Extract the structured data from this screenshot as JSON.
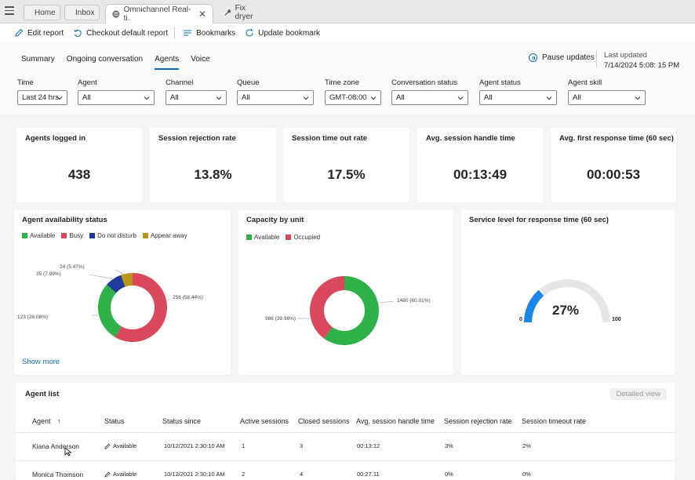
{
  "browser": {
    "tabs": [
      {
        "label": "Home",
        "icon": "home-icon"
      },
      {
        "label": "Inbox",
        "icon": "inbox-icon"
      },
      {
        "label": "Omnichannel Real-ti.",
        "icon": "globe-icon",
        "active": true
      },
      {
        "label": "Fix dryer",
        "icon": "wrench-icon"
      }
    ]
  },
  "commands": {
    "edit_report": "Edit report",
    "checkout_default": "Checkout default report",
    "bookmarks": "Bookmarks",
    "update_bookmark": "Update bookmark"
  },
  "report_tabs": [
    "Summary",
    "Ongoing conversation",
    "Agents",
    "Voice"
  ],
  "active_report_tab": "Agents",
  "pause_updates": "Pause updates",
  "last_updated": {
    "label": "Last updated",
    "value": "7/14/2024 5:08: 15 PM"
  },
  "filters": [
    {
      "label": "Time",
      "value": "Last 24 hrs"
    },
    {
      "label": "Agent",
      "value": "All"
    },
    {
      "label": "Channel",
      "value": "All"
    },
    {
      "label": "Queue",
      "value": "All"
    },
    {
      "label": "Time zone",
      "value": "GMT-08:00"
    },
    {
      "label": "Conversation status",
      "value": "All"
    },
    {
      "label": "Agent status",
      "value": "All"
    },
    {
      "label": "Agent skill",
      "value": "All"
    }
  ],
  "kpis": [
    {
      "title": "Agents logged in",
      "value": "438"
    },
    {
      "title": "Session rejection rate",
      "value": "13.8%"
    },
    {
      "title": "Session time out rate",
      "value": "17.5%"
    },
    {
      "title": "Avg. session handle time",
      "value": "00:13:49"
    },
    {
      "title": "Avg. first response time (60 sec)",
      "value": "00:00:53"
    }
  ],
  "colors": {
    "available": "#2fb14a",
    "busy": "#d9495b",
    "dnd": "#1f3c9c",
    "away": "#b8961c",
    "accent": "#0f6cbd",
    "gauge_track": "#e6e6e6"
  },
  "availability_card": {
    "title": "Agent availability status",
    "legend": [
      "Available",
      "Busy",
      "Do not disturb",
      "Appear away"
    ],
    "show_more": "Show more",
    "labels": {
      "busy": "256 (58.44%)",
      "available": "123 (28.08%)",
      "dnd": "35 (7.99%)",
      "away": "24 (5.47%)"
    }
  },
  "capacity_card": {
    "title": "Capacity by unit",
    "legend": [
      "Available",
      "Occupied"
    ],
    "labels": {
      "available": "1480 (60.01%)",
      "occupied": "986 (39.98%)"
    }
  },
  "service_card": {
    "title": "Service level for response time (60 sec)",
    "value": "27%",
    "min": "0",
    "max": "100"
  },
  "chart_data": [
    {
      "type": "pie",
      "title": "Agent availability status",
      "categories": [
        "Busy",
        "Available",
        "Do not disturb",
        "Appear away"
      ],
      "values": [
        256,
        123,
        35,
        24
      ],
      "percent": [
        58.44,
        28.08,
        7.99,
        5.47
      ]
    },
    {
      "type": "pie",
      "title": "Capacity by unit",
      "categories": [
        "Available",
        "Occupied"
      ],
      "values": [
        1480,
        986
      ],
      "percent": [
        60.01,
        39.98
      ]
    },
    {
      "type": "gauge",
      "title": "Service level for response time (60 sec)",
      "value": 27,
      "min": 0,
      "max": 100
    }
  ],
  "agent_list": {
    "title": "Agent list",
    "detailed_view": "Detailed view",
    "columns": [
      "Agent",
      "Status",
      "Status since",
      "Active sessions",
      "Closed sessions",
      "Avg. session handle time",
      "Session rejection rate",
      "Session timeout rate"
    ],
    "sort_indicator": "↑",
    "rows": [
      [
        "Kiana Anderson",
        "Available",
        "10/12/2021 2:30:10 AM",
        "1",
        "3",
        "00:13:12",
        "3%",
        "2%"
      ],
      [
        "Monica Thomson",
        "Available",
        "10/12/2021 2:30:10 AM",
        "2",
        "4",
        "00:27:11",
        "0%",
        "0%"
      ]
    ]
  }
}
